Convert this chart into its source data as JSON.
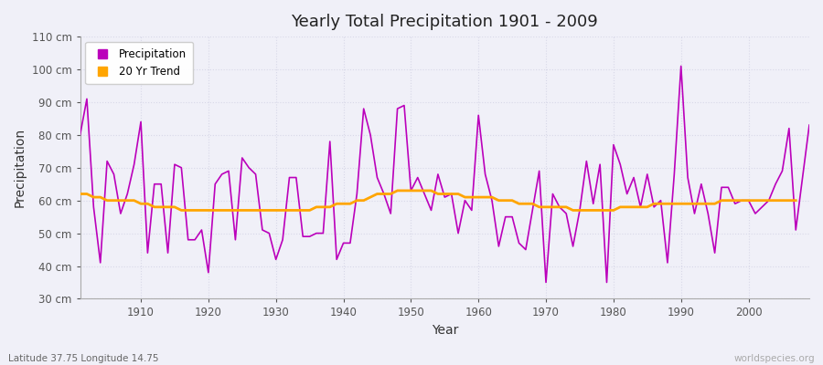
{
  "title": "Yearly Total Precipitation 1901 - 2009",
  "xlabel": "Year",
  "ylabel": "Precipitation",
  "subtitle_left": "Latitude 37.75 Longitude 14.75",
  "subtitle_right": "worldspecies.org",
  "precipitation_color": "#bb00bb",
  "trend_color": "#ffa500",
  "background_color": "#f0f0f8",
  "plot_bg_color": "#f0f0f8",
  "grid_color": "#d8d8e8",
  "ylim": [
    30,
    110
  ],
  "yticks": [
    30,
    40,
    50,
    60,
    70,
    80,
    90,
    100,
    110
  ],
  "ytick_labels": [
    "30 cm",
    "40 cm",
    "50 cm",
    "60 cm",
    "70 cm",
    "80 cm",
    "90 cm",
    "100 cm",
    "110 cm"
  ],
  "years": [
    1901,
    1902,
    1903,
    1904,
    1905,
    1906,
    1907,
    1908,
    1909,
    1910,
    1911,
    1912,
    1913,
    1914,
    1915,
    1916,
    1917,
    1918,
    1919,
    1920,
    1921,
    1922,
    1923,
    1924,
    1925,
    1926,
    1927,
    1928,
    1929,
    1930,
    1931,
    1932,
    1933,
    1934,
    1935,
    1936,
    1937,
    1938,
    1939,
    1940,
    1941,
    1942,
    1943,
    1944,
    1945,
    1946,
    1947,
    1948,
    1949,
    1950,
    1951,
    1952,
    1953,
    1954,
    1955,
    1956,
    1957,
    1958,
    1959,
    1960,
    1961,
    1962,
    1963,
    1964,
    1965,
    1966,
    1967,
    1968,
    1969,
    1970,
    1971,
    1972,
    1973,
    1974,
    1975,
    1976,
    1977,
    1978,
    1979,
    1980,
    1981,
    1982,
    1983,
    1984,
    1985,
    1986,
    1987,
    1988,
    1989,
    1990,
    1991,
    1992,
    1993,
    1994,
    1995,
    1996,
    1997,
    1998,
    1999,
    2000,
    2001,
    2002,
    2003,
    2004,
    2005,
    2006,
    2007,
    2008,
    2009
  ],
  "precipitation": [
    80,
    91,
    58,
    41,
    72,
    68,
    56,
    62,
    71,
    84,
    44,
    65,
    65,
    44,
    71,
    70,
    48,
    48,
    51,
    38,
    65,
    68,
    69,
    48,
    73,
    70,
    68,
    51,
    50,
    42,
    48,
    67,
    67,
    49,
    49,
    50,
    50,
    78,
    42,
    47,
    47,
    62,
    88,
    80,
    67,
    62,
    56,
    88,
    89,
    63,
    67,
    62,
    57,
    68,
    61,
    62,
    50,
    60,
    57,
    86,
    68,
    60,
    46,
    55,
    55,
    47,
    45,
    57,
    69,
    35,
    62,
    58,
    56,
    46,
    57,
    72,
    59,
    71,
    35,
    77,
    71,
    62,
    67,
    58,
    68,
    58,
    60,
    41,
    68,
    101,
    67,
    56,
    65,
    56,
    44,
    64,
    64,
    59,
    60,
    60,
    56,
    58,
    60,
    65,
    69,
    82,
    51,
    67,
    83
  ],
  "trend": [
    62,
    62,
    61,
    61,
    60,
    60,
    60,
    60,
    60,
    59,
    59,
    58,
    58,
    58,
    58,
    57,
    57,
    57,
    57,
    57,
    57,
    57,
    57,
    57,
    57,
    57,
    57,
    57,
    57,
    57,
    57,
    57,
    57,
    57,
    57,
    58,
    58,
    58,
    59,
    59,
    59,
    60,
    60,
    61,
    62,
    62,
    62,
    63,
    63,
    63,
    63,
    63,
    63,
    62,
    62,
    62,
    62,
    61,
    61,
    61,
    61,
    61,
    60,
    60,
    60,
    59,
    59,
    59,
    58,
    58,
    58,
    58,
    58,
    57,
    57,
    57,
    57,
    57,
    57,
    57,
    58,
    58,
    58,
    58,
    58,
    59,
    59,
    59,
    59,
    59,
    59,
    59,
    59,
    59,
    59,
    60,
    60,
    60,
    60,
    60,
    60,
    60,
    60,
    60,
    60,
    60,
    60,
    null,
    null
  ],
  "figsize": [
    9.0,
    4.0
  ],
  "dpi": 100
}
